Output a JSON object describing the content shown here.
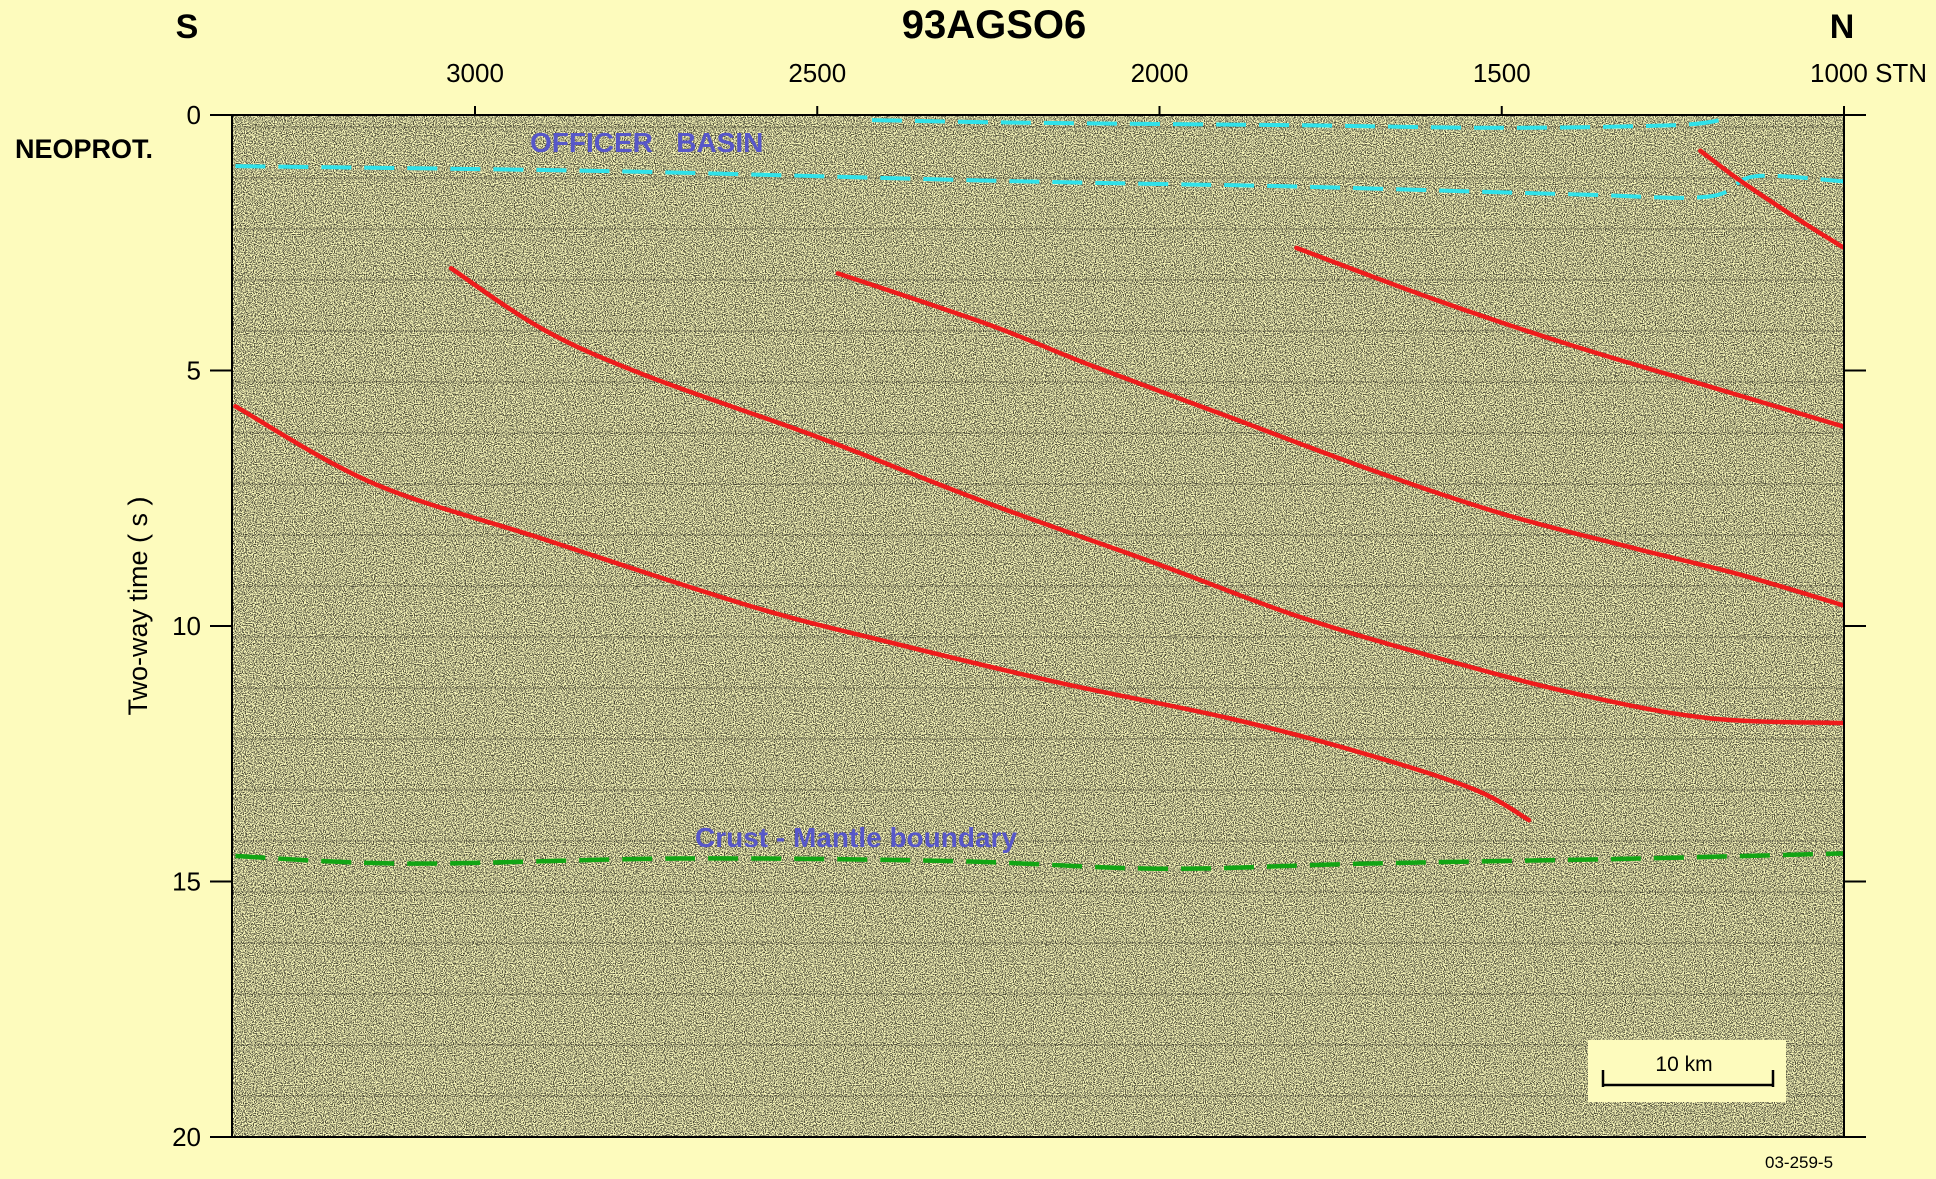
{
  "figure": {
    "title": "93AGSO6",
    "left_direction": "S",
    "right_direction": "N",
    "era_label": "NEOPROT.",
    "y_axis_label": "Two-way time ( s )",
    "x_ticks": [
      {
        "value": 3000,
        "label": "3000"
      },
      {
        "value": 2500,
        "label": "2500"
      },
      {
        "value": 2000,
        "label": "2000"
      },
      {
        "value": 1500,
        "label": "1500"
      },
      {
        "value": 1000,
        "label": "1000 STN"
      }
    ],
    "y_ticks": [
      {
        "value": 0,
        "label": "0"
      },
      {
        "value": 5,
        "label": "5"
      },
      {
        "value": 10,
        "label": "10"
      },
      {
        "value": 15,
        "label": "15"
      },
      {
        "value": 20,
        "label": "20"
      }
    ],
    "basin_label": "OFFICER   BASIN",
    "moho_label": "Crust - Mantle boundary",
    "scale_bar_label": "10 km",
    "figure_code": "03-259-5",
    "colors": {
      "background": "#fdfbbd",
      "fault": "#ee1c1c",
      "basin_boundary": "#2fe2ea",
      "moho": "#12a514",
      "annotation": "#5757c9"
    }
  },
  "chart_data": {
    "type": "seismic-section",
    "x_unit": "STN",
    "y_unit": "s",
    "xlim": [
      3350,
      1000
    ],
    "ylim": [
      0,
      20
    ],
    "faults": [
      {
        "points": [
          [
            3350,
            5.7
          ],
          [
            3150,
            7.2
          ],
          [
            2900,
            8.3
          ],
          [
            2600,
            9.6
          ],
          [
            2400,
            10.3
          ],
          [
            2150,
            11.1
          ],
          [
            1900,
            11.8
          ],
          [
            1700,
            12.5
          ],
          [
            1540,
            13.2
          ],
          [
            1460,
            13.8
          ]
        ]
      },
      {
        "points": [
          [
            3035,
            3.0
          ],
          [
            2900,
            4.2
          ],
          [
            2750,
            5.1
          ],
          [
            2500,
            6.3
          ],
          [
            2250,
            7.6
          ],
          [
            2000,
            8.8
          ],
          [
            1800,
            9.8
          ],
          [
            1600,
            10.6
          ],
          [
            1400,
            11.3
          ],
          [
            1200,
            11.8
          ],
          [
            1000,
            11.9
          ]
        ]
      },
      {
        "points": [
          [
            2470,
            3.1
          ],
          [
            2250,
            4.1
          ],
          [
            2100,
            4.9
          ],
          [
            1900,
            5.9
          ],
          [
            1700,
            6.9
          ],
          [
            1500,
            7.8
          ],
          [
            1300,
            8.5
          ],
          [
            1150,
            9.0
          ],
          [
            1000,
            9.6
          ]
        ]
      },
      {
        "points": [
          [
            1800,
            2.6
          ],
          [
            1600,
            3.6
          ],
          [
            1400,
            4.5
          ],
          [
            1200,
            5.3
          ],
          [
            1000,
            6.1
          ]
        ]
      },
      {
        "points": [
          [
            1210,
            0.7
          ],
          [
            1150,
            1.3
          ],
          [
            1060,
            2.1
          ],
          [
            1000,
            2.6
          ]
        ]
      }
    ],
    "basin_boundary_top": [
      [
        2420,
        0.1
      ],
      [
        2200,
        0.15
      ],
      [
        1800,
        0.2
      ],
      [
        1500,
        0.25
      ],
      [
        1250,
        0.2
      ],
      [
        1180,
        0.1
      ]
    ],
    "basin_boundary_base": [
      [
        3350,
        1.0
      ],
      [
        2800,
        1.1
      ],
      [
        2200,
        1.3
      ],
      [
        1800,
        1.4
      ],
      [
        1400,
        1.55
      ],
      [
        1200,
        1.6
      ],
      [
        1130,
        1.2
      ],
      [
        1000,
        1.3
      ]
    ],
    "moho": [
      [
        3350,
        14.5
      ],
      [
        3100,
        14.65
      ],
      [
        2700,
        14.55
      ],
      [
        2300,
        14.6
      ],
      [
        2000,
        14.75
      ],
      [
        1700,
        14.65
      ],
      [
        1300,
        14.55
      ],
      [
        1000,
        14.45
      ]
    ]
  }
}
